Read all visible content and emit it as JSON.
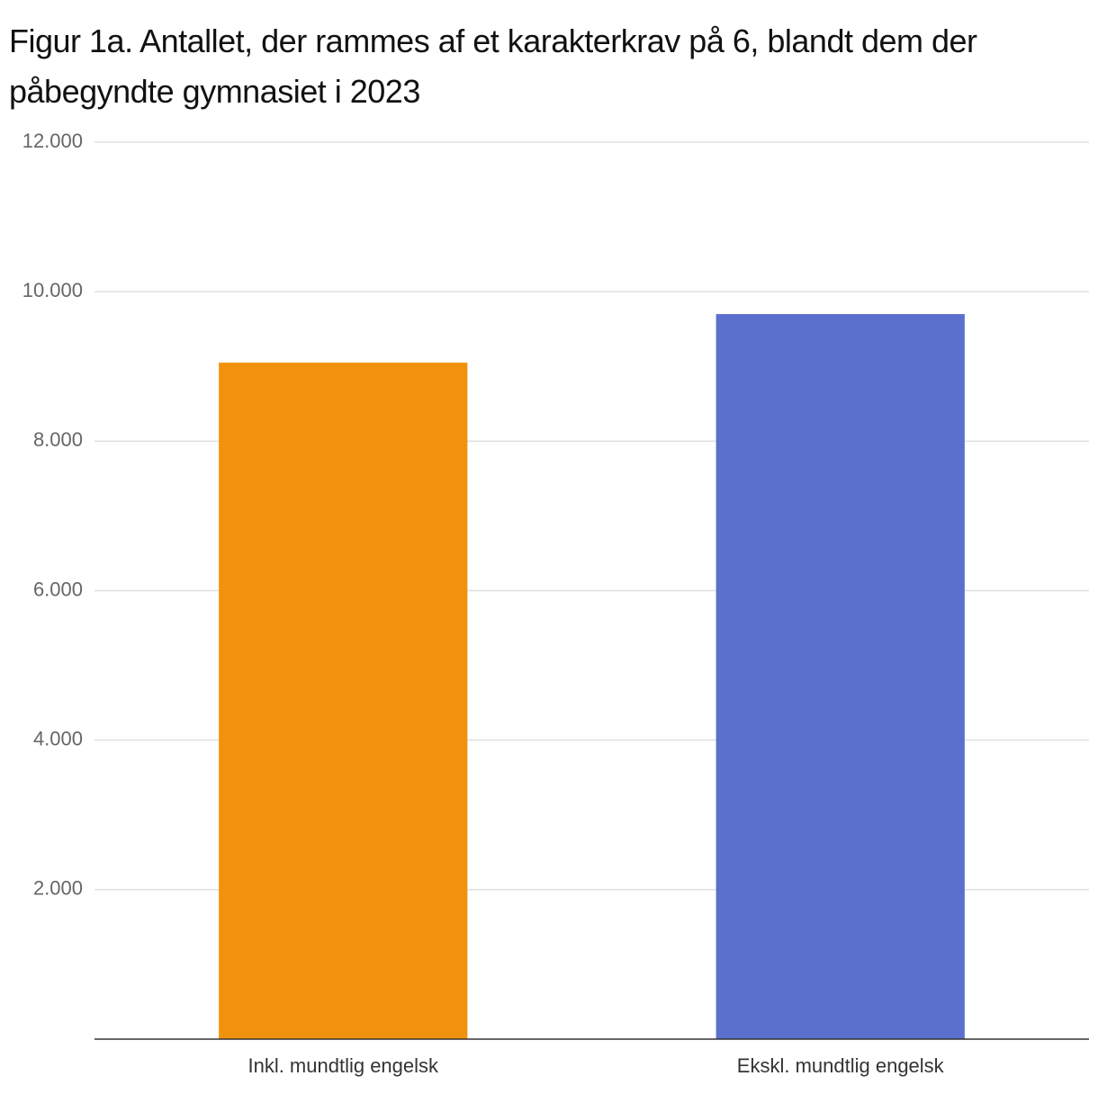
{
  "chart_data": {
    "type": "bar",
    "title": "Figur 1a. Antallet, der rammes af et karakterkrav på 6, blandt dem der påbegyndte gymnasiet i 2023",
    "categories": [
      "Inkl. mundtlig engelsk",
      "Ekskl. mundtlig engelsk"
    ],
    "values": [
      9050,
      9700
    ],
    "colors": [
      "#f1920f",
      "#5b6fcc"
    ],
    "ylim": [
      0,
      12000
    ],
    "yticks": [
      {
        "value": 2000,
        "label": "2.000"
      },
      {
        "value": 4000,
        "label": "4.000"
      },
      {
        "value": 6000,
        "label": "6.000"
      },
      {
        "value": 8000,
        "label": "8.000"
      },
      {
        "value": 10000,
        "label": "10.000"
      },
      {
        "value": 12000,
        "label": "12.000"
      }
    ],
    "grid": true
  }
}
